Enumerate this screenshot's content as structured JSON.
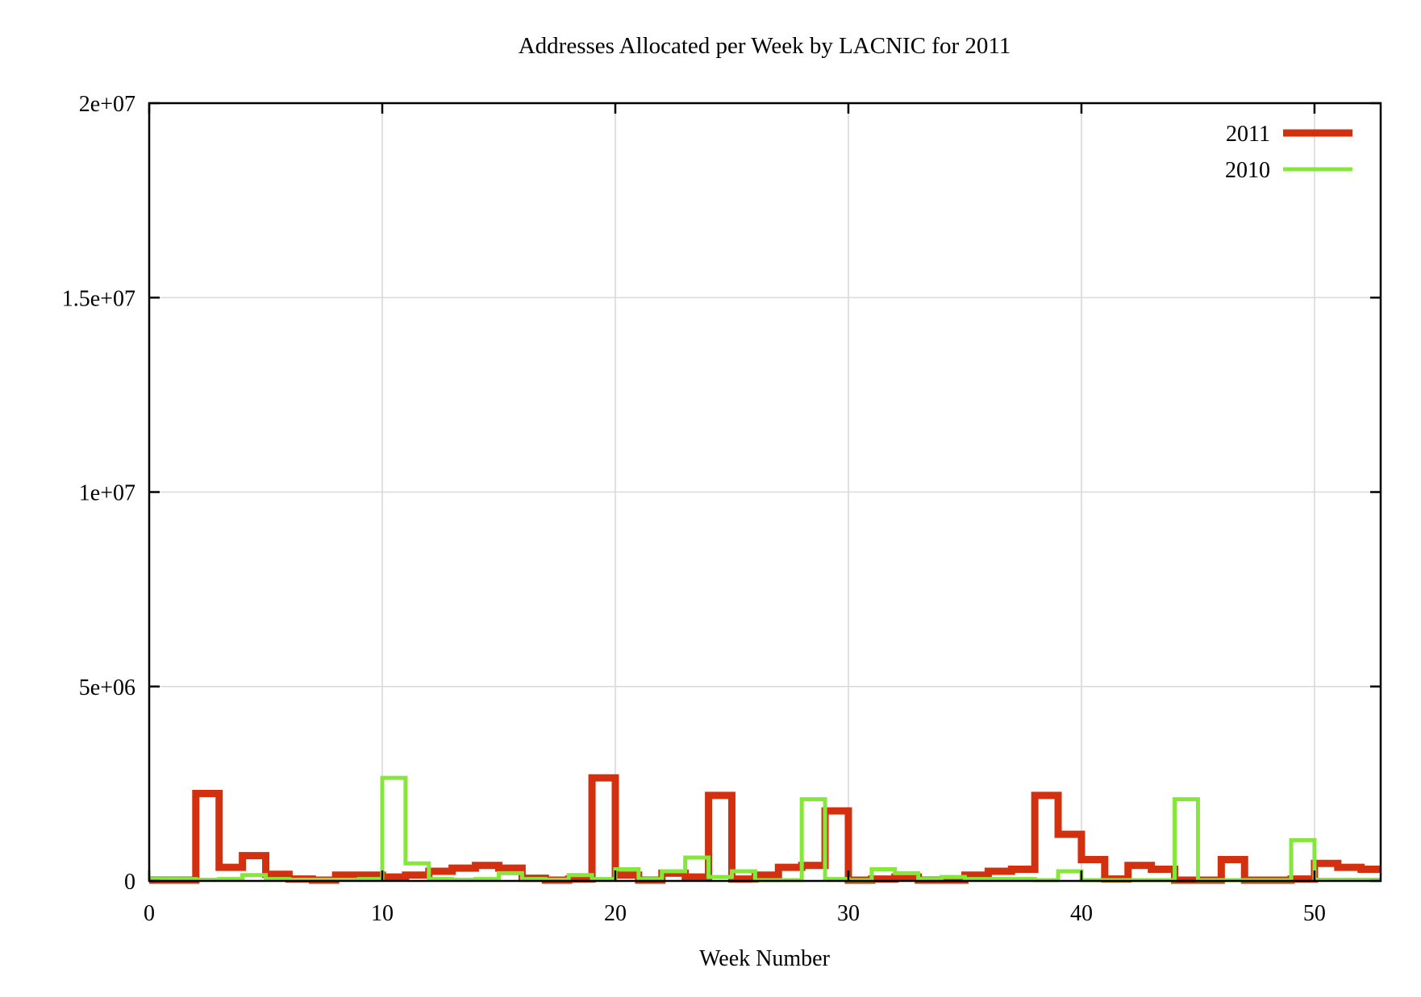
{
  "chart": {
    "title": "Addresses Allocated per Week by LACNIC for 2011",
    "xlabel": "Week Number"
  },
  "legend": {
    "position": "top-right",
    "items": [
      {
        "label": "2011",
        "color": "#d2300e"
      },
      {
        "label": "2010",
        "color": "#84e73a"
      }
    ]
  },
  "axes": {
    "x_ticks": [
      {
        "value": 0,
        "label": "0"
      },
      {
        "value": 10,
        "label": "10"
      },
      {
        "value": 20,
        "label": "20"
      },
      {
        "value": 30,
        "label": "30"
      },
      {
        "value": 40,
        "label": "40"
      },
      {
        "value": 50,
        "label": "50"
      }
    ],
    "y_ticks": [
      {
        "value": 0,
        "label": "0"
      },
      {
        "value": 5000000,
        "label": "5e+06"
      },
      {
        "value": 10000000,
        "label": "1e+07"
      },
      {
        "value": 15000000,
        "label": "1.5e+07"
      },
      {
        "value": 20000000,
        "label": "2e+07"
      }
    ]
  },
  "chart_data": {
    "type": "line",
    "style": "steps",
    "title": "Addresses Allocated per Week by LACNIC for 2011",
    "xlabel": "Week Number",
    "ylabel": "",
    "xlim": [
      0,
      52.84
    ],
    "ylim": [
      0,
      20000000
    ],
    "grid": true,
    "legend_position": "top-right",
    "x_unit": "week_number",
    "weeks": [
      0,
      1,
      2,
      3,
      4,
      5,
      6,
      7,
      8,
      9,
      10,
      11,
      12,
      13,
      14,
      15,
      16,
      17,
      18,
      19,
      20,
      21,
      22,
      23,
      24,
      25,
      26,
      27,
      28,
      29,
      30,
      31,
      32,
      33,
      34,
      35,
      36,
      37,
      38,
      39,
      40,
      41,
      42,
      43,
      44,
      45,
      46,
      47,
      48,
      49,
      50,
      51,
      52
    ],
    "series": [
      {
        "name": "2011",
        "color": "#d2300e",
        "line_width": 9,
        "values": [
          20000,
          20000,
          2250000,
          350000,
          650000,
          170000,
          50000,
          20000,
          150000,
          150000,
          100000,
          150000,
          250000,
          330000,
          400000,
          330000,
          70000,
          20000,
          50000,
          2650000,
          150000,
          20000,
          200000,
          100000,
          2200000,
          50000,
          150000,
          350000,
          400000,
          1800000,
          20000,
          50000,
          100000,
          20000,
          20000,
          150000,
          250000,
          300000,
          2200000,
          1200000,
          550000,
          50000,
          400000,
          300000,
          20000,
          20000,
          550000,
          20000,
          20000,
          50000,
          450000,
          350000,
          300000
        ]
      },
      {
        "name": "2010",
        "color": "#84e73a",
        "line_width": 5,
        "values": [
          50000,
          50000,
          30000,
          50000,
          150000,
          50000,
          30000,
          30000,
          30000,
          50000,
          2650000,
          450000,
          50000,
          30000,
          50000,
          200000,
          50000,
          30000,
          150000,
          50000,
          300000,
          50000,
          250000,
          600000,
          100000,
          250000,
          20000,
          20000,
          2100000,
          50000,
          20000,
          300000,
          200000,
          50000,
          100000,
          50000,
          50000,
          50000,
          20000,
          250000,
          20000,
          20000,
          20000,
          20000,
          2100000,
          20000,
          20000,
          20000,
          20000,
          1050000,
          30000,
          30000,
          30000
        ]
      }
    ]
  }
}
